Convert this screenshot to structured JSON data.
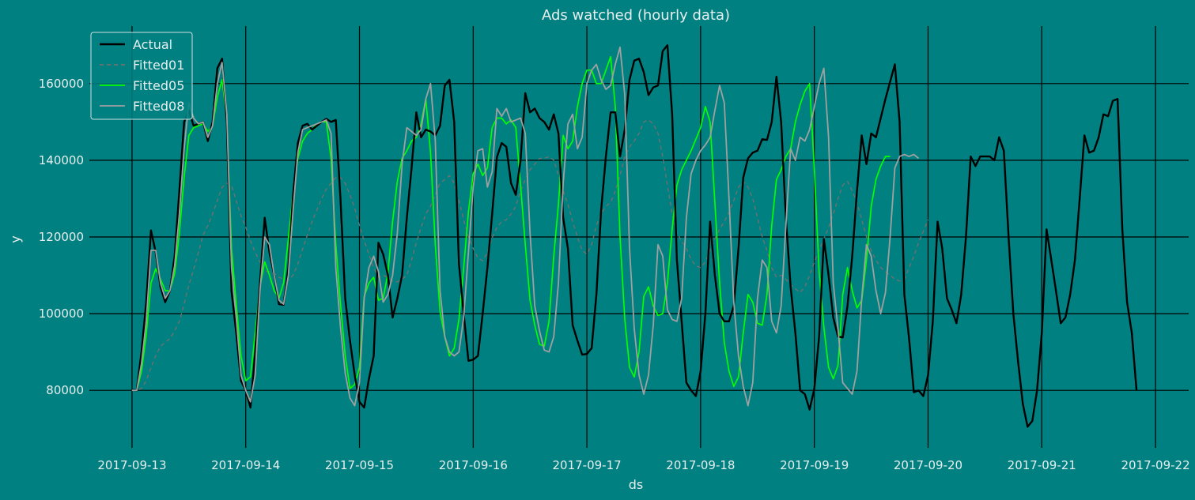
{
  "chart_data": {
    "type": "line",
    "title": "Ads watched (hourly data)",
    "xlabel": "ds",
    "ylabel": "y",
    "x_ticks": [
      "2017-09-13",
      "2017-09-14",
      "2017-09-15",
      "2017-09-16",
      "2017-09-17",
      "2017-09-18",
      "2017-09-19",
      "2017-09-20",
      "2017-09-21",
      "2017-09-22"
    ],
    "y_ticks": [
      80000,
      100000,
      120000,
      140000,
      160000
    ],
    "xlim": [
      "2017-09-12 15:00",
      "2017-09-22 07:00"
    ],
    "ylim": [
      65000,
      175000
    ],
    "grid": true,
    "legend_position": "top-left",
    "background": "#008080",
    "series": [
      {
        "name": "Actual",
        "color": "#000000",
        "style": "solid",
        "start": "2017-09-13 00:00",
        "step_hours": 1,
        "values": [
          80100,
          80000,
          90000,
          103000,
          121700,
          116000,
          107000,
          103000,
          106000,
          115000,
          132000,
          150000,
          153000,
          149000,
          149500,
          150000,
          145000,
          150000,
          164000,
          166500,
          150000,
          106000,
          95000,
          82500,
          80000,
          75500,
          90000,
          108000,
          125000,
          116000,
          110000,
          102500,
          102300,
          112000,
          131000,
          144500,
          149000,
          149500,
          148000,
          149000,
          150000,
          150800,
          150000,
          150500,
          130000,
          104000,
          93000,
          84000,
          77000,
          75500,
          83000,
          89000,
          118500,
          115500,
          110000,
          99000,
          104000,
          110000,
          125000,
          138000,
          152500,
          146000,
          148000,
          147500,
          146500,
          149000,
          159500,
          161000,
          150000,
          113000,
          100000,
          87700,
          88000,
          89000,
          100000,
          112000,
          126000,
          140800,
          144500,
          143500,
          134000,
          131000,
          140000,
          157500,
          152500,
          153500,
          151000,
          150000,
          148000,
          152000,
          147000,
          125000,
          117000,
          97000,
          93000,
          89300,
          89500,
          91000,
          105000,
          127000,
          141000,
          152500,
          152500,
          141000,
          148000,
          161000,
          166000,
          166500,
          163000,
          157000,
          159000,
          159500,
          168500,
          170000,
          152000,
          114000,
          98000,
          82000,
          80000,
          78500,
          85000,
          100000,
          124000,
          110000,
          100000,
          98000,
          98000,
          102000,
          117000,
          135500,
          140500,
          142000,
          142500,
          145500,
          145300,
          150000,
          161800,
          150000,
          125000,
          107000,
          95000,
          80000,
          79000,
          75000,
          80500,
          94000,
          119500,
          110000,
          99000,
          94000,
          93800,
          102000,
          115000,
          132000,
          146500,
          139000,
          147000,
          146000,
          151000,
          156000,
          160500,
          165000,
          150000,
          105000,
          93500,
          79500,
          80000,
          78500,
          84000,
          98000,
          124000,
          117000,
          104000,
          101000,
          97500,
          105000,
          120000,
          141000,
          138500,
          141000,
          141000,
          141000,
          140000,
          146000,
          142500,
          120000,
          100000,
          87500,
          76500,
          70500,
          72000,
          80000,
          95000,
          122000,
          114000,
          106000,
          97500,
          99000,
          105000,
          114000,
          130000,
          146500,
          142000,
          142500,
          146000,
          152000,
          151500,
          155500,
          156000,
          122000,
          103000,
          95000,
          80000
        ]
      },
      {
        "name": "Fitted01",
        "color": "#707070",
        "style": "dashed",
        "start": "2017-09-13 00:00",
        "step_hours": 1,
        "values": [
          80000,
          80000,
          80500,
          82500,
          86000,
          89000,
          91500,
          92500,
          93500,
          95500,
          98000,
          102500,
          107500,
          111500,
          116000,
          120500,
          123000,
          126000,
          129500,
          133000,
          134000,
          133500,
          129500,
          125500,
          122500,
          119000,
          116000,
          113500,
          111000,
          111000,
          110500,
          109500,
          109000,
          108800,
          110000,
          113000,
          116800,
          120500,
          124000,
          127000,
          130000,
          132500,
          134000,
          135500,
          135500,
          134000,
          131000,
          127500,
          123000,
          119000,
          115500,
          112000,
          109500,
          110000,
          109500,
          108500,
          108300,
          109000,
          110000,
          114000,
          118500,
          122500,
          126000,
          128000,
          131000,
          134000,
          135000,
          136000,
          134000,
          129500,
          124500,
          120000,
          117000,
          114500,
          113800,
          116000,
          119800,
          122500,
          124000,
          124500,
          126000,
          128000,
          132000,
          135000,
          137500,
          139000,
          140500,
          140500,
          141000,
          140000,
          136000,
          132000,
          128500,
          124000,
          120000,
          116500,
          115500,
          118000,
          123000,
          126000,
          128000,
          129000,
          132000,
          136000,
          141000,
          143500,
          145000,
          147000,
          150000,
          150500,
          149500,
          147000,
          141000,
          133500,
          126000,
          121000,
          119000,
          117000,
          114000,
          112500,
          112000,
          113500,
          116500,
          119500,
          122000,
          124000,
          126500,
          129500,
          133000,
          134500,
          133000,
          130000,
          125000,
          120000,
          116500,
          112000,
          109500,
          110000,
          109000,
          107500,
          106500,
          105500,
          107000,
          110000,
          113500,
          116500,
          119500,
          122500,
          126000,
          130000,
          133500,
          134500,
          132000,
          129000,
          124500,
          120000,
          116500,
          114000,
          112000,
          111000,
          110000,
          109000,
          108500,
          109000,
          112000,
          115000,
          118500,
          121500,
          124500
        ]
      },
      {
        "name": "Fitted05",
        "color": "#00ff00",
        "style": "solid",
        "start": "2017-09-13 00:00",
        "step_hours": 1,
        "values": [
          80000,
          80000,
          85000,
          94500,
          108000,
          111700,
          109000,
          106000,
          106000,
          110500,
          121000,
          135500,
          146500,
          148500,
          149000,
          149500,
          147500,
          149000,
          156500,
          161000,
          150500,
          117000,
          102500,
          89000,
          82500,
          83500,
          95000,
          107000,
          113500,
          110000,
          106000,
          104000,
          108000,
          119500,
          131500,
          140500,
          145000,
          147000,
          148000,
          149500,
          150000,
          150000,
          140500,
          118000,
          102500,
          89000,
          80500,
          81500,
          86000,
          104500,
          108000,
          109500,
          103500,
          104000,
          110500,
          124000,
          134500,
          140500,
          142500,
          145000,
          146000,
          149500,
          156000,
          142000,
          118000,
          100500,
          94000,
          89000,
          91000,
          98500,
          112000,
          126500,
          136500,
          139000,
          136000,
          138000,
          148500,
          151000,
          151000,
          149500,
          150500,
          148500,
          133500,
          118000,
          103500,
          97000,
          92000,
          91500,
          98000,
          115000,
          128500,
          146500,
          143000,
          145000,
          154000,
          160000,
          163500,
          163500,
          160000,
          160000,
          163500,
          167000,
          154000,
          120000,
          98500,
          86000,
          83500,
          90000,
          104500,
          107000,
          102000,
          99500,
          100000,
          108000,
          122000,
          133500,
          137500,
          140000,
          142500,
          145500,
          148500,
          154000,
          150000,
          129000,
          108000,
          92500,
          85000,
          81000,
          83500,
          95000,
          105000,
          103000,
          97500,
          97000,
          105000,
          123000,
          135000,
          137500,
          141000,
          143000,
          150000,
          154500,
          158000,
          160000,
          137500,
          111000,
          96500,
          86000,
          83000,
          86500,
          105000,
          112000,
          106000,
          101500,
          103500,
          114000,
          128000,
          135000,
          138500,
          141000,
          141000
        ]
      },
      {
        "name": "Fitted08",
        "color": "#a0a0a0",
        "style": "solid",
        "start": "2017-09-13 00:00",
        "step_hours": 1,
        "values": [
          80000,
          80000,
          87000,
          98000,
          116500,
          116500,
          108000,
          104000,
          106000,
          112500,
          126000,
          143000,
          155000,
          151000,
          149500,
          150000,
          146000,
          149000,
          160000,
          165500,
          152000,
          112000,
          99000,
          84000,
          80000,
          77000,
          84000,
          106000,
          120000,
          118000,
          110000,
          103500,
          102500,
          110000,
          127000,
          142000,
          148000,
          148500,
          149000,
          149500,
          150000,
          150500,
          147000,
          112000,
          96500,
          84500,
          78000,
          76000,
          82000,
          104000,
          112000,
          115000,
          111000,
          103000,
          105000,
          110000,
          121000,
          139000,
          148500,
          147500,
          146500,
          148000,
          156000,
          160000,
          145000,
          106000,
          94000,
          90000,
          89000,
          90000,
          99000,
          116000,
          133000,
          142500,
          143000,
          133000,
          137000,
          153500,
          151500,
          153500,
          150000,
          150500,
          151000,
          147000,
          121000,
          102000,
          95500,
          90500,
          90000,
          94000,
          108000,
          134000,
          149500,
          152000,
          143000,
          146000,
          160000,
          163500,
          165000,
          161000,
          158500,
          159500,
          165000,
          169500,
          157000,
          117000,
          96000,
          84000,
          79000,
          84000,
          97000,
          118000,
          115000,
          101000,
          98500,
          98000,
          104000,
          125000,
          136500,
          140000,
          142500,
          144000,
          146000,
          153000,
          159500,
          155000,
          130000,
          103000,
          89000,
          81000,
          76000,
          82000,
          104000,
          114000,
          112000,
          98000,
          95000,
          102000,
          123000,
          143000,
          140000,
          146000,
          145000,
          148000,
          154000,
          160000,
          164000,
          146000,
          108000,
          96000,
          82000,
          80500,
          79000,
          85000,
          104000,
          118000,
          115000,
          106000,
          100000,
          105500,
          120000,
          138000,
          141000,
          141500,
          141000,
          141500,
          140500
        ]
      }
    ]
  }
}
